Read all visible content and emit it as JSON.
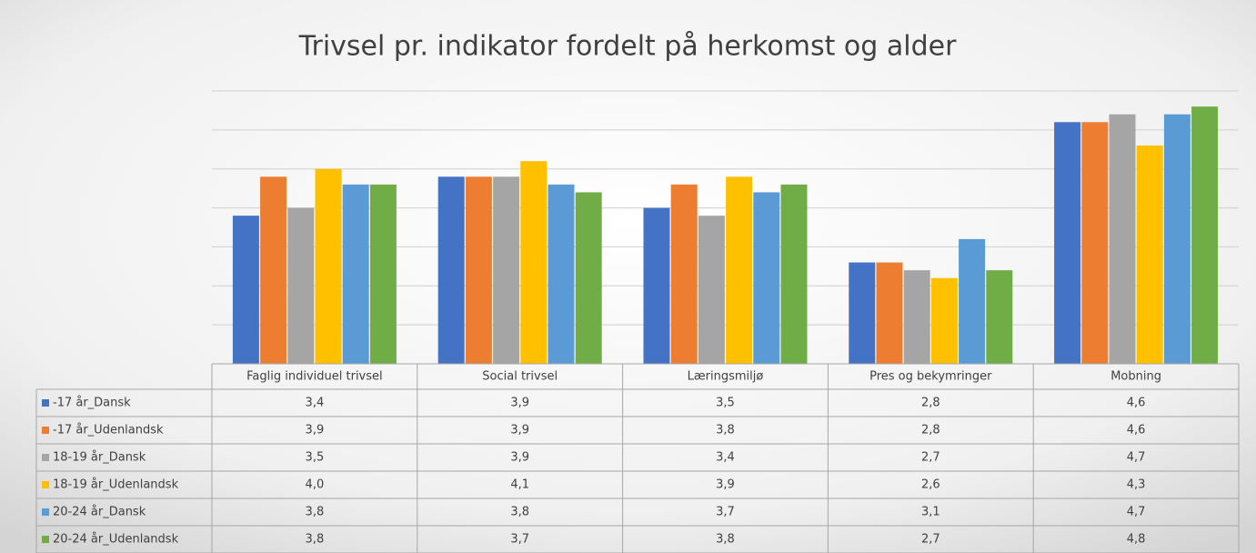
{
  "chart_data": {
    "type": "bar",
    "title": "Trivsel pr. indikator fordelt på herkomst og alder",
    "categories": [
      "Faglig individuel trivsel",
      "Social trivsel",
      "Læringsmiljø",
      "Pres og bekymringer",
      "Mobning"
    ],
    "series": [
      {
        "name": "-17 år_Dansk",
        "color": "#4472c4",
        "values": [
          3.4,
          3.9,
          3.5,
          2.8,
          4.6
        ],
        "value_labels": [
          "3,4",
          "3,9",
          "3,5",
          "2,8",
          "4,6"
        ]
      },
      {
        "name": "-17 år_Udenlandsk",
        "color": "#ed7d31",
        "values": [
          3.9,
          3.9,
          3.8,
          2.8,
          4.6
        ],
        "value_labels": [
          "3,9",
          "3,9",
          "3,8",
          "2,8",
          "4,6"
        ]
      },
      {
        "name": "18-19 år_Dansk",
        "color": "#a5a5a5",
        "values": [
          3.5,
          3.9,
          3.4,
          2.7,
          4.7
        ],
        "value_labels": [
          "3,5",
          "3,9",
          "3,4",
          "2,7",
          "4,7"
        ]
      },
      {
        "name": "18-19 år_Udenlandsk",
        "color": "#ffc000",
        "values": [
          4.0,
          4.1,
          3.9,
          2.6,
          4.3
        ],
        "value_labels": [
          "4,0",
          "4,1",
          "3,9",
          "2,6",
          "4,3"
        ]
      },
      {
        "name": "20-24 år_Dansk",
        "color": "#5b9bd5",
        "values": [
          3.8,
          3.8,
          3.7,
          3.1,
          4.7
        ],
        "value_labels": [
          "3,8",
          "3,8",
          "3,7",
          "3,1",
          "4,7"
        ]
      },
      {
        "name": "20-24 år_Udenlandsk",
        "color": "#70ad47",
        "values": [
          3.8,
          3.7,
          3.8,
          2.7,
          4.8
        ],
        "value_labels": [
          "3,8",
          "3,7",
          "3,8",
          "2,7",
          "4,8"
        ]
      }
    ],
    "ylim": [
      1.5,
      5.0
    ],
    "yticks": [
      1.5,
      2,
      2.5,
      3,
      3.5,
      4,
      4.5,
      5
    ],
    "grid": true
  }
}
